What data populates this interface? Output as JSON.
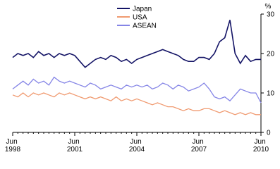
{
  "chart_data": {
    "type": "line",
    "unit": "%",
    "categories": [
      "Jun 1998",
      null,
      null,
      null,
      null,
      null,
      null,
      null,
      null,
      null,
      null,
      null,
      "Jun 2001",
      null,
      null,
      null,
      null,
      null,
      null,
      null,
      null,
      null,
      null,
      null,
      "Jun 2004",
      null,
      null,
      null,
      null,
      null,
      null,
      null,
      null,
      null,
      null,
      null,
      "Jun 2007",
      null,
      null,
      null,
      null,
      null,
      null,
      null,
      null,
      null,
      null,
      null,
      "Jun 2010"
    ],
    "series": [
      {
        "name": "Japan",
        "color": "#141466",
        "values": [
          19,
          20,
          19.5,
          20,
          19,
          20.5,
          19.5,
          20,
          19,
          20,
          19.5,
          20,
          19.5,
          18,
          16.5,
          17.5,
          18.5,
          19,
          18.5,
          19.5,
          19,
          18,
          18.5,
          17.5,
          18.5,
          19,
          19.5,
          20,
          20.5,
          21,
          20.5,
          20,
          19.5,
          18.5,
          18,
          18,
          19,
          19,
          18.5,
          20,
          23,
          24,
          28.5,
          20,
          17.5,
          19.5,
          18,
          18.5,
          18.5
        ]
      },
      {
        "name": "USA",
        "color": "#f09a70",
        "values": [
          9.5,
          9,
          10,
          9,
          10,
          9.5,
          10,
          9.5,
          9,
          10,
          9.5,
          10,
          9.5,
          9,
          8.5,
          9,
          8.5,
          9,
          8.5,
          8,
          9,
          8,
          8.5,
          8,
          8.5,
          8,
          7.5,
          7,
          7.5,
          7,
          6.5,
          6.5,
          6,
          5.5,
          6,
          5.5,
          5.5,
          6,
          6,
          5.5,
          5,
          5.5,
          5,
          4.5,
          5,
          4.5,
          5,
          4.5,
          4.5
        ]
      },
      {
        "name": "ASEAN",
        "color": "#8585e6",
        "values": [
          11,
          12,
          13,
          12,
          13.5,
          12.5,
          13,
          12,
          14,
          13,
          12.5,
          13,
          12.5,
          12,
          11.5,
          12.5,
          12,
          11,
          11.5,
          12,
          11.5,
          11,
          12,
          11.5,
          12,
          11.5,
          12,
          11,
          11.5,
          12.5,
          12,
          11,
          12,
          11.5,
          10.5,
          11,
          11.5,
          12.5,
          11,
          9,
          8.5,
          9,
          8,
          9.5,
          11,
          10.5,
          10,
          10,
          7.5
        ]
      }
    ],
    "ylim": [
      0,
      30
    ],
    "yticks": [
      0,
      10,
      20,
      30
    ]
  }
}
